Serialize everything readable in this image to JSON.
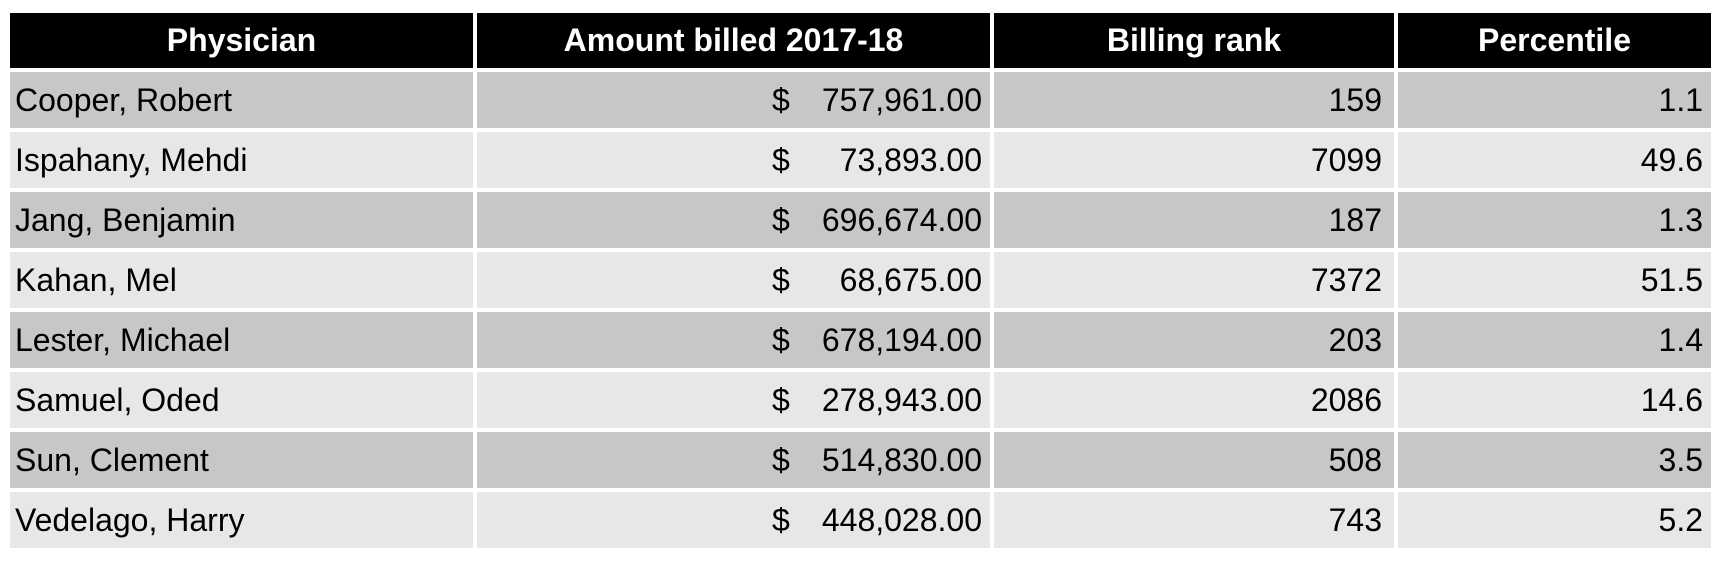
{
  "colors": {
    "background": "#ffffff",
    "header_bg": "#000000",
    "header_text": "#ffffff",
    "row_dark": "#c7c7c7",
    "row_light": "#e7e7e7",
    "text": "#000000"
  },
  "table": {
    "columns": [
      {
        "label": "Physician"
      },
      {
        "label": "Amount billed 2017-18"
      },
      {
        "label": "Billing rank"
      },
      {
        "label": "Percentile"
      }
    ],
    "rows": [
      {
        "physician": "Cooper, Robert",
        "currency": "$",
        "amount": "757,961.00",
        "rank": "159",
        "percentile": "1.1"
      },
      {
        "physician": "Ispahany, Mehdi",
        "currency": "$",
        "amount": "73,893.00",
        "rank": "7099",
        "percentile": "49.6"
      },
      {
        "physician": "Jang, Benjamin",
        "currency": "$",
        "amount": "696,674.00",
        "rank": "187",
        "percentile": "1.3"
      },
      {
        "physician": "Kahan, Mel",
        "currency": "$",
        "amount": "68,675.00",
        "rank": "7372",
        "percentile": "51.5"
      },
      {
        "physician": "Lester, Michael",
        "currency": "$",
        "amount": "678,194.00",
        "rank": "203",
        "percentile": "1.4"
      },
      {
        "physician": "Samuel, Oded",
        "currency": "$",
        "amount": "278,943.00",
        "rank": "2086",
        "percentile": "14.6"
      },
      {
        "physician": "Sun, Clement",
        "currency": "$",
        "amount": "514,830.00",
        "rank": "508",
        "percentile": "3.5"
      },
      {
        "physician": "Vedelago, Harry",
        "currency": "$",
        "amount": "448,028.00",
        "rank": "743",
        "percentile": "5.2"
      }
    ]
  }
}
